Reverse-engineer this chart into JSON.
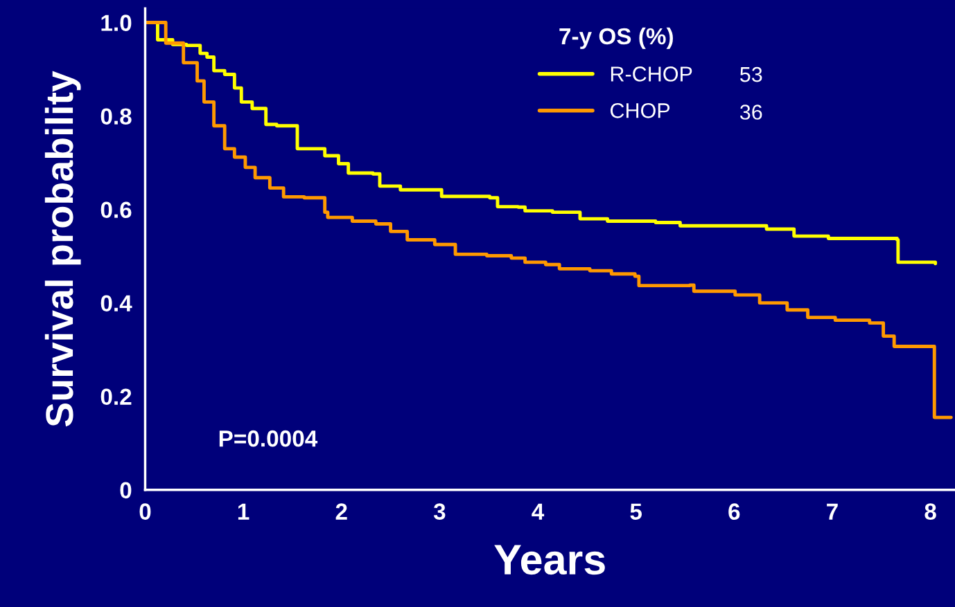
{
  "chart_data": {
    "type": "step",
    "xlabel": "Years",
    "ylabel": "Survival probability",
    "legend_title": "7-y OS (%)",
    "legend": "top right",
    "grid": false,
    "marker": "none",
    "line_style": "solid",
    "xlim": [
      0,
      8.25
    ],
    "ylim": [
      0,
      1.03
    ],
    "xticks": [
      0,
      1,
      2,
      3,
      4,
      5,
      6,
      7,
      8
    ],
    "yticks": [
      {
        "value": 0,
        "label": "0"
      },
      {
        "value": 0.2,
        "label": "0.2"
      },
      {
        "value": 0.4,
        "label": "0.4"
      },
      {
        "value": 0.6,
        "label": "0.6"
      },
      {
        "value": 0.8,
        "label": "0.8"
      },
      {
        "value": 1.0,
        "label": "1.0"
      }
    ],
    "annotations": [
      "53",
      "36",
      "P=0.0004"
    ],
    "series": [
      {
        "name": "R-CHOP",
        "color": "#ffff00",
        "x": [
          0,
          0.127,
          0.28,
          0.42,
          0.56,
          0.63,
          0.7,
          0.81,
          0.91,
          0.98,
          1.09,
          1.23,
          1.34,
          1.55,
          1.83,
          1.97,
          2.07,
          2.32,
          2.39,
          2.53,
          2.6,
          2.88,
          3.02,
          3.51,
          3.59,
          3.8,
          3.87,
          4.15,
          4.43,
          4.71,
          5.2,
          5.45,
          5.98,
          6.33,
          6.61,
          6.96,
          7.66,
          7.67,
          8.05
        ],
        "values": [
          1.0,
          0.963,
          0.953,
          0.951,
          0.934,
          0.926,
          0.897,
          0.889,
          0.86,
          0.83,
          0.816,
          0.782,
          0.779,
          0.73,
          0.715,
          0.698,
          0.678,
          0.676,
          0.65,
          0.65,
          0.642,
          0.642,
          0.628,
          0.625,
          0.606,
          0.605,
          0.597,
          0.594,
          0.58,
          0.575,
          0.572,
          0.565,
          0.565,
          0.558,
          0.543,
          0.538,
          0.535,
          0.487,
          0.484
        ]
      },
      {
        "name": "CHOP",
        "color": "#ff9900",
        "x": [
          0,
          0.21,
          0.39,
          0.53,
          0.6,
          0.7,
          0.81,
          0.91,
          1.02,
          1.12,
          1.27,
          1.41,
          1.62,
          1.83,
          1.86,
          2.11,
          2.35,
          2.5,
          2.67,
          2.95,
          3.16,
          3.48,
          3.73,
          3.87,
          4.08,
          4.22,
          4.53,
          4.75,
          4.99,
          5.03,
          5.55,
          5.59,
          6.01,
          6.26,
          6.54,
          6.75,
          7.03,
          7.38,
          7.52,
          7.63,
          8.01,
          8.04,
          8.21
        ],
        "values": [
          1.0,
          0.956,
          0.914,
          0.875,
          0.83,
          0.779,
          0.73,
          0.712,
          0.69,
          0.668,
          0.646,
          0.627,
          0.625,
          0.594,
          0.583,
          0.575,
          0.569,
          0.553,
          0.535,
          0.525,
          0.504,
          0.501,
          0.496,
          0.487,
          0.482,
          0.473,
          0.469,
          0.462,
          0.457,
          0.437,
          0.438,
          0.425,
          0.417,
          0.4,
          0.385,
          0.369,
          0.363,
          0.357,
          0.329,
          0.307,
          0.307,
          0.155,
          0.155
        ]
      }
    ]
  }
}
